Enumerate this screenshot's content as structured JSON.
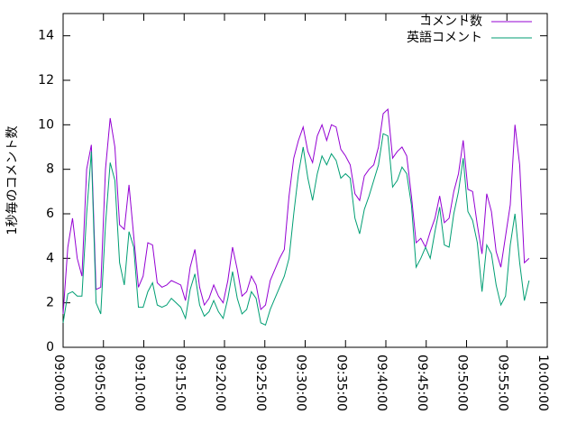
{
  "chart_data": {
    "type": "line",
    "ylabel": "1秒毎のコメント数",
    "x": [
      "09:00:00",
      "09:00:35",
      "09:01:10",
      "09:01:45",
      "09:02:20",
      "09:02:55",
      "09:03:30",
      "09:04:05",
      "09:04:40",
      "09:05:15",
      "09:05:50",
      "09:06:25",
      "09:07:00",
      "09:07:35",
      "09:08:10",
      "09:08:45",
      "09:09:20",
      "09:09:55",
      "09:10:30",
      "09:11:05",
      "09:11:40",
      "09:12:15",
      "09:12:50",
      "09:13:25",
      "09:14:00",
      "09:14:35",
      "09:15:10",
      "09:15:45",
      "09:16:20",
      "09:16:55",
      "09:17:30",
      "09:18:05",
      "09:18:40",
      "09:19:15",
      "09:19:50",
      "09:20:25",
      "09:21:00",
      "09:21:35",
      "09:22:10",
      "09:22:45",
      "09:23:20",
      "09:23:55",
      "09:24:30",
      "09:25:05",
      "09:25:40",
      "09:26:15",
      "09:26:50",
      "09:27:25",
      "09:28:00",
      "09:28:35",
      "09:29:10",
      "09:29:45",
      "09:30:20",
      "09:30:55",
      "09:31:30",
      "09:32:05",
      "09:32:40",
      "09:33:15",
      "09:33:50",
      "09:34:25",
      "09:35:00",
      "09:35:35",
      "09:36:10",
      "09:36:45",
      "09:37:20",
      "09:37:55",
      "09:38:30",
      "09:39:05",
      "09:39:40",
      "09:40:15",
      "09:40:50",
      "09:41:25",
      "09:42:00",
      "09:42:35",
      "09:43:10",
      "09:43:45",
      "09:44:20",
      "09:44:55",
      "09:45:30",
      "09:46:05",
      "09:46:40",
      "09:47:15",
      "09:47:50",
      "09:48:25",
      "09:49:00",
      "09:49:35",
      "09:50:10",
      "09:50:45",
      "09:51:20",
      "09:51:55",
      "09:52:30",
      "09:53:05",
      "09:53:40",
      "09:54:15",
      "09:54:50",
      "09:55:25",
      "09:56:00",
      "09:56:35",
      "09:57:10",
      "09:57:45"
    ],
    "series": [
      {
        "name": "コメント数",
        "color": "#9400d3",
        "values": [
          1.5,
          4.5,
          5.8,
          4,
          3.2,
          8,
          9.1,
          2.6,
          2.7,
          8,
          10.3,
          9,
          5.5,
          5.3,
          7.3,
          5,
          2.7,
          3.2,
          4.7,
          4.6,
          2.9,
          2.7,
          2.8,
          3,
          2.9,
          2.8,
          2.1,
          3.6,
          4.4,
          2.7,
          1.9,
          2.2,
          2.8,
          2.3,
          2,
          3,
          4.5,
          3.5,
          2.3,
          2.5,
          3.2,
          2.8,
          1.7,
          1.9,
          3,
          3.5,
          4,
          4.4,
          6.8,
          8.5,
          9.3,
          9.9,
          8.8,
          8.3,
          9.5,
          10,
          9.3,
          10,
          9.9,
          8.9,
          8.6,
          8.2,
          6.9,
          6.6,
          7.7,
          8,
          8.2,
          9,
          10.5,
          10.7,
          8.5,
          8.8,
          9,
          8.6,
          6.8,
          4.7,
          4.9,
          4.5,
          5.2,
          5.8,
          6.8,
          5.6,
          5.8,
          7,
          7.8,
          9.3,
          7.1,
          7,
          5.5,
          4.2,
          6.9,
          6.1,
          4.3,
          3.6,
          5,
          6.4,
          10,
          8.2,
          3.8,
          4
        ]
      },
      {
        "name": "英語コメント",
        "color": "#009e73",
        "values": [
          1.1,
          2.4,
          2.5,
          2.3,
          2.3,
          6,
          8.8,
          2,
          1.5,
          5.5,
          8.3,
          7.5,
          3.8,
          2.8,
          5.2,
          4.5,
          1.8,
          1.8,
          2.5,
          2.9,
          1.9,
          1.8,
          1.9,
          2.2,
          2,
          1.8,
          1.3,
          2.6,
          3.3,
          1.9,
          1.4,
          1.6,
          2.1,
          1.6,
          1.3,
          2.2,
          3.4,
          2.2,
          1.5,
          1.7,
          2.5,
          2.2,
          1.1,
          1,
          1.7,
          2.2,
          2.7,
          3.2,
          4,
          6,
          7.8,
          9,
          7.6,
          6.6,
          7.8,
          8.6,
          8.2,
          8.7,
          8.4,
          7.6,
          7.8,
          7.6,
          5.8,
          5.1,
          6.2,
          6.8,
          7.5,
          8.2,
          9.6,
          9.5,
          7.2,
          7.5,
          8.1,
          7.8,
          6.4,
          3.6,
          4,
          4.5,
          4,
          5.2,
          6.3,
          4.6,
          4.5,
          6,
          7,
          8.5,
          6.1,
          5.7,
          4.7,
          2.5,
          4.6,
          4.2,
          2.8,
          1.9,
          2.3,
          4.6,
          6,
          3.8,
          2.1,
          3
        ]
      }
    ],
    "xlim": [
      "09:00:00",
      "10:00:00"
    ],
    "xticks": [
      "09:00:00",
      "09:05:00",
      "09:10:00",
      "09:15:00",
      "09:20:00",
      "09:25:00",
      "09:30:00",
      "09:35:00",
      "09:40:00",
      "09:45:00",
      "09:50:00",
      "09:55:00",
      "10:00:00"
    ],
    "ylim": [
      0,
      15
    ],
    "yticks": [
      0,
      2,
      4,
      6,
      8,
      10,
      12,
      14
    ],
    "legend": "upper right"
  }
}
